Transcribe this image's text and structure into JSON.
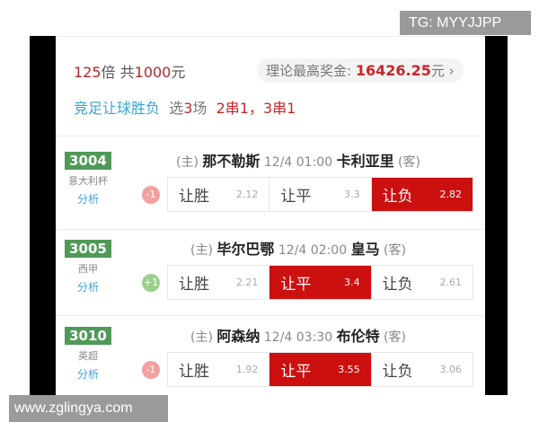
{
  "overlays": {
    "tg": "TG: MYYJJPP",
    "site": "www.zglingya.com"
  },
  "summary": {
    "multiple": "125",
    "multiple_unit": "倍 共",
    "total": "1000",
    "currency": "元",
    "prize_label": "理论最高奖金:",
    "prize_value": "16426.25",
    "prize_unit": "元",
    "chevron": "›"
  },
  "bet": {
    "type": "竞足让球胜负",
    "select_prefix": "选",
    "count": "3",
    "select_suffix": "场",
    "combos": "2串1，3串1"
  },
  "colors": {
    "selected": "#cc1010",
    "badge": "#4f9a58",
    "link": "#3ca3d8"
  },
  "matches": [
    {
      "id": "3004",
      "league": "意大利杯",
      "analysis": "分析",
      "home_tag": "(主)",
      "home": "那不勒斯",
      "time": "12/4 01:00",
      "away": "卡利亚里",
      "away_tag": "(客)",
      "handicap": "-1",
      "handicap_color": "#f2a0a0",
      "options": [
        {
          "label": "让胜",
          "odds": "2.12",
          "selected": false
        },
        {
          "label": "让平",
          "odds": "3.3",
          "selected": false
        },
        {
          "label": "让负",
          "odds": "2.82",
          "selected": true
        }
      ]
    },
    {
      "id": "3005",
      "league": "西甲",
      "analysis": "分析",
      "home_tag": "(主)",
      "home": "毕尔巴鄂",
      "time": "12/4 02:00",
      "away": "皇马",
      "away_tag": "(客)",
      "handicap": "+1",
      "handicap_color": "#9ccf8c",
      "options": [
        {
          "label": "让胜",
          "odds": "2.21",
          "selected": false
        },
        {
          "label": "让平",
          "odds": "3.4",
          "selected": true
        },
        {
          "label": "让负",
          "odds": "2.61",
          "selected": false
        }
      ]
    },
    {
      "id": "3010",
      "league": "英超",
      "analysis": "分析",
      "home_tag": "(主)",
      "home": "阿森纳",
      "time": "12/4 03:30",
      "away": "布伦特",
      "away_tag": "(客)",
      "handicap": "-1",
      "handicap_color": "#f2a0a0",
      "options": [
        {
          "label": "让胜",
          "odds": "1.92",
          "selected": false
        },
        {
          "label": "让平",
          "odds": "3.55",
          "selected": true
        },
        {
          "label": "让负",
          "odds": "3.06",
          "selected": false
        }
      ]
    }
  ]
}
